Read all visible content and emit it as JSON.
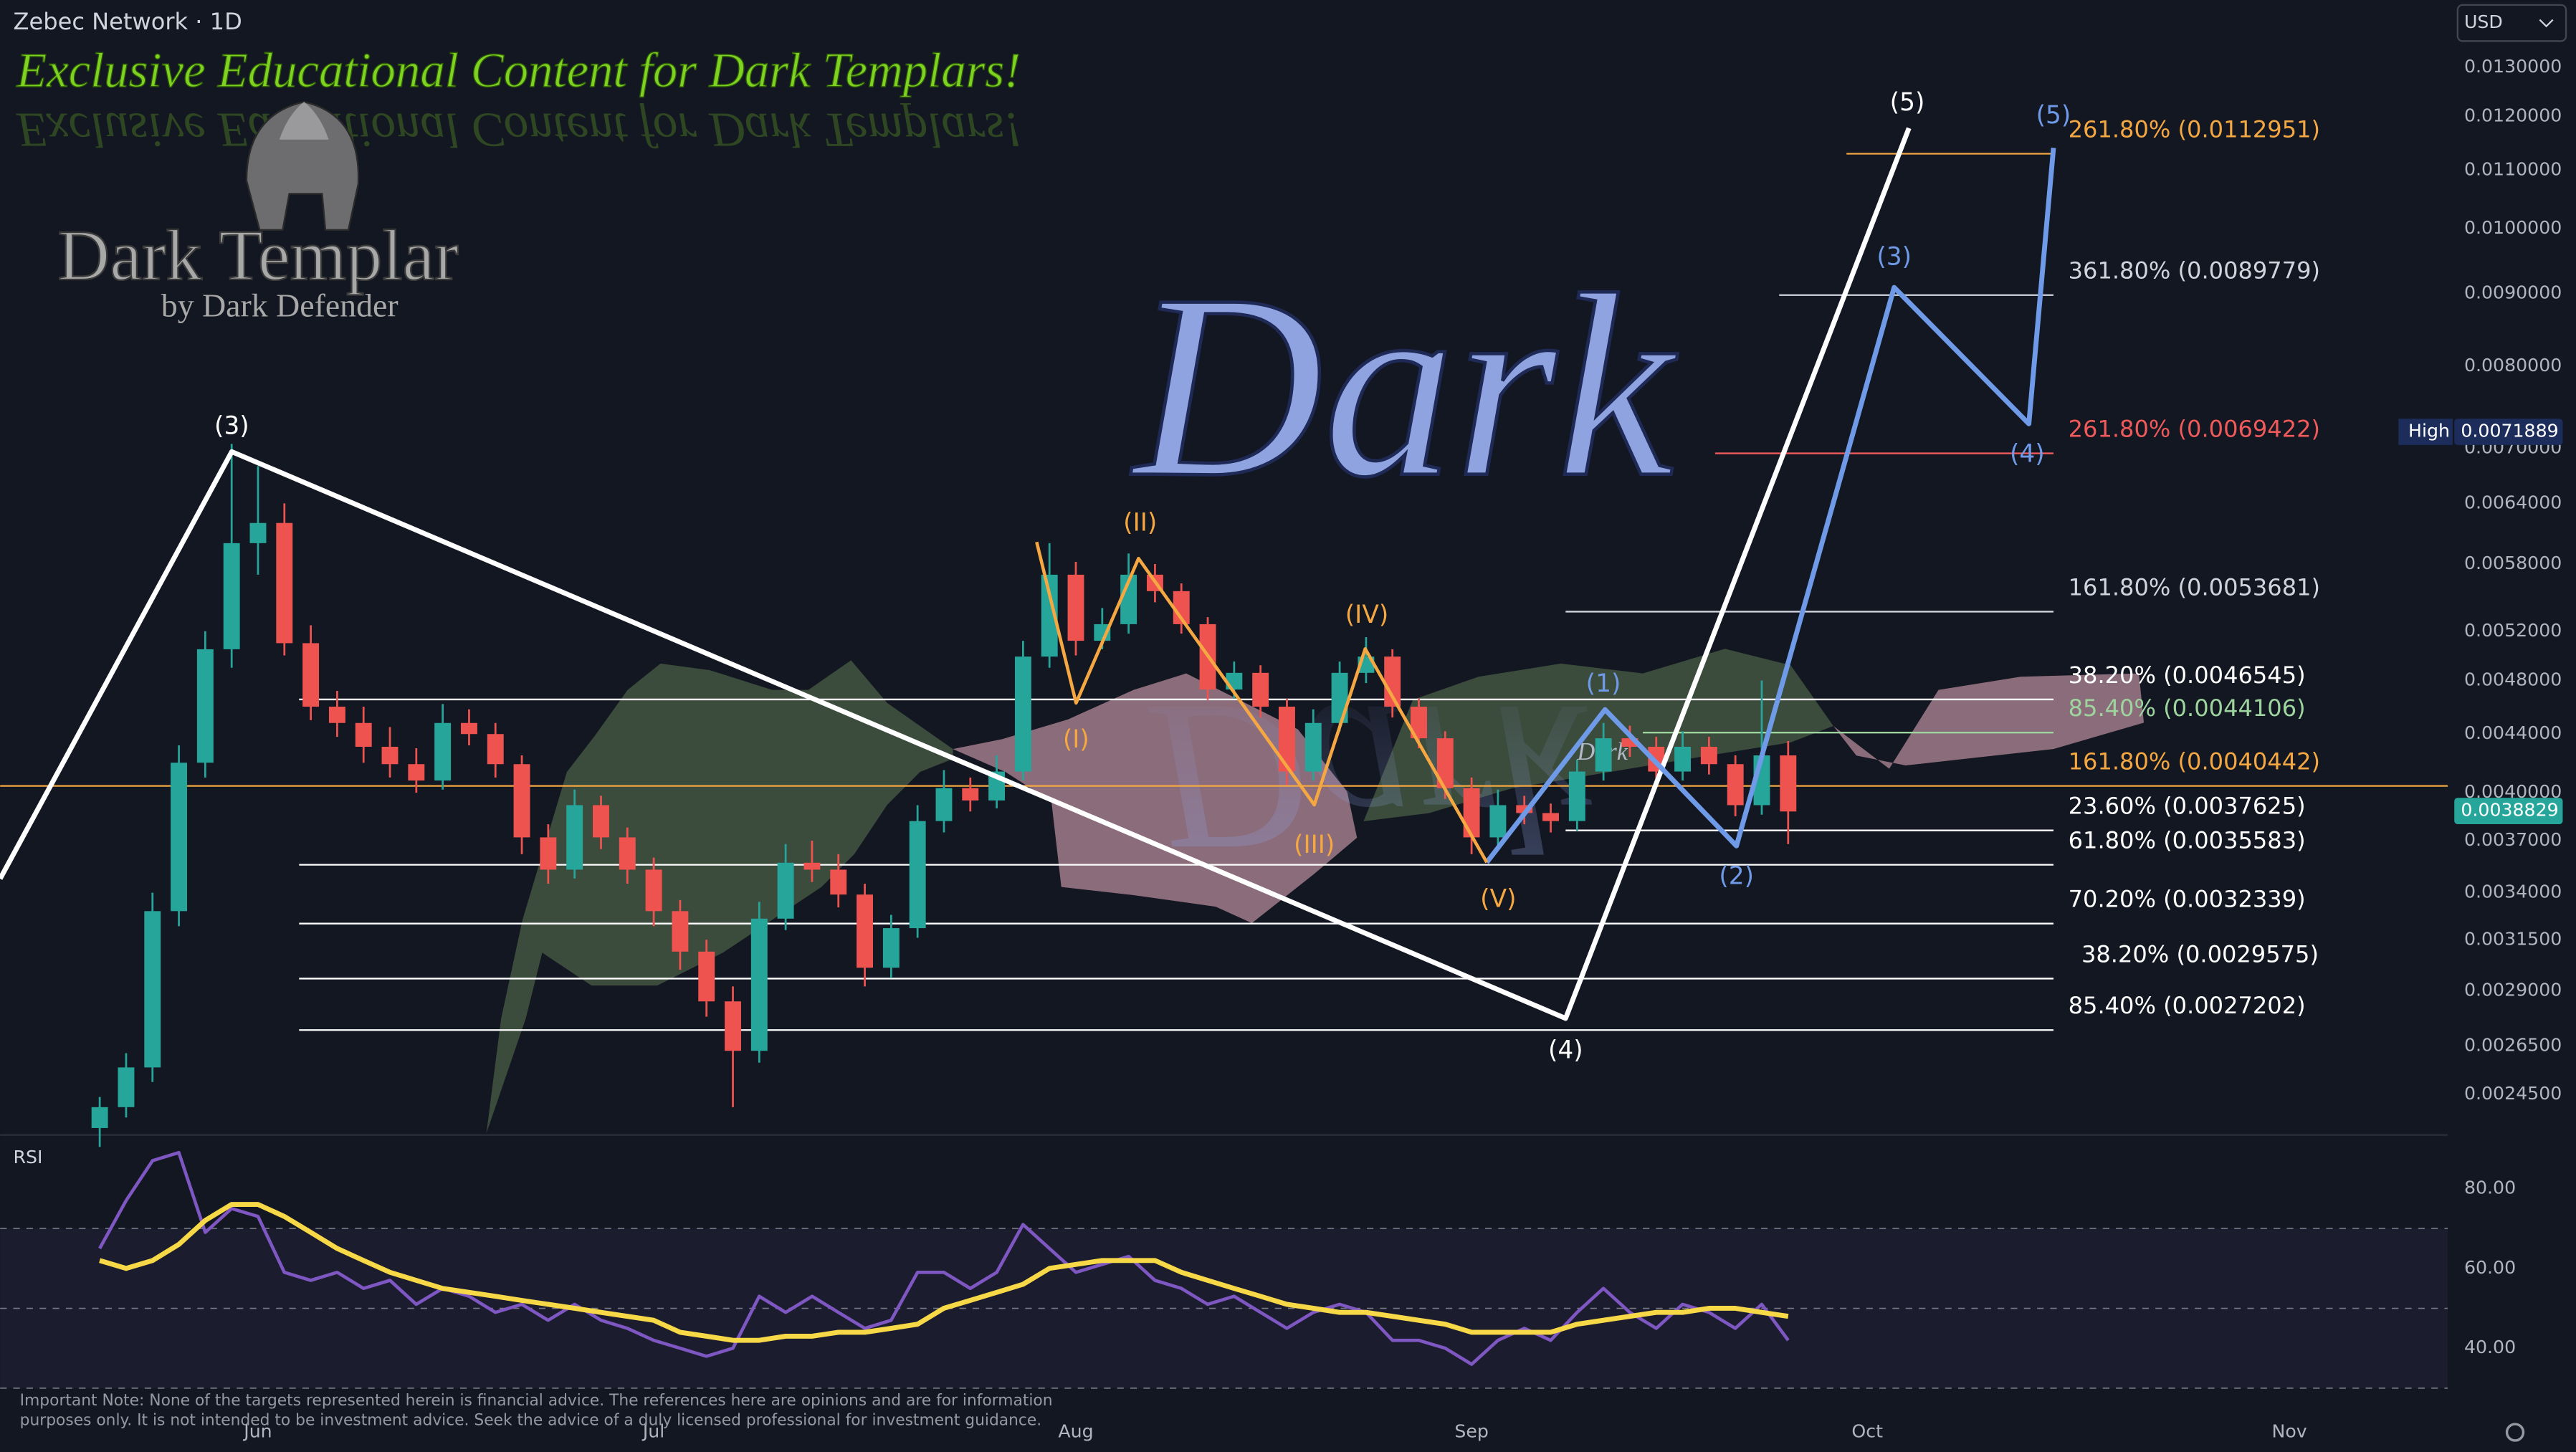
{
  "header": {
    "symbol": "Zebec Network · 1D",
    "currency": "USD",
    "banner": "Exclusive Educational Content for Dark Templars!",
    "logo_title": "Dark Templar",
    "logo_subtitle": "by Dark Defender",
    "watermark": "Dark",
    "watermark_small": "Dark"
  },
  "chart_data": [
    {
      "type": "candlestick",
      "categories": [
        null,
        null,
        null,
        null,
        null,
        null,
        "Jun",
        null,
        null,
        null,
        null,
        null,
        null,
        null,
        null,
        null,
        null,
        null,
        null,
        null,
        null,
        "Jul",
        null,
        null,
        null,
        null,
        null,
        null,
        null,
        null,
        null,
        null,
        null,
        null,
        null,
        null,
        null,
        "Aug",
        null,
        null,
        null,
        null,
        null,
        null,
        null,
        null,
        null,
        null,
        null,
        null,
        null,
        null,
        "Sep",
        null,
        null,
        null,
        null,
        null,
        null,
        null,
        null,
        null,
        null,
        null,
        null,
        null,
        null,
        "Oct",
        null,
        null,
        null,
        null,
        null,
        null,
        null,
        null,
        null,
        null,
        null,
        null,
        null,
        null,
        null,
        "Nov",
        null,
        null,
        null,
        null,
        null
      ],
      "open": [
        0.00232,
        0.0024,
        0.00256,
        0.0033,
        0.0042,
        0.00505,
        0.006,
        0.0062,
        0.0051,
        0.0046,
        0.00448,
        0.00431,
        0.00419,
        0.00408,
        0.00448,
        0.0044,
        0.00419,
        0.00372,
        0.00353,
        0.00392,
        0.00372,
        0.00353,
        0.0033,
        0.00309,
        0.00285,
        0.00263,
        0.00326,
        0.00357,
        0.00353,
        0.00339,
        0.00301,
        0.00321,
        0.00382,
        0.00403,
        0.00395,
        0.00414,
        0.00499,
        0.0057,
        0.00512,
        0.00526,
        0.0057,
        0.00555,
        0.00526,
        0.00473,
        0.00486,
        0.0046,
        0.00414,
        0.00448,
        0.00486,
        0.00499,
        0.0046,
        0.00437,
        0.00403,
        0.00372,
        0.00392,
        0.00387,
        0.00382,
        0.00414,
        0.00437,
        0.00431,
        0.00414,
        0.00431,
        0.00419,
        0.00392,
        0.00425,
        null,
        null,
        null,
        null,
        null,
        null,
        null,
        null,
        null,
        null,
        null,
        null,
        null,
        null,
        null,
        null,
        null,
        null,
        null,
        null,
        null,
        null,
        null,
        null
      ],
      "high": [
        0.00244,
        0.00262,
        0.0034,
        0.00432,
        0.0052,
        0.00705,
        0.0068,
        0.0064,
        0.00525,
        0.00472,
        0.0046,
        0.00445,
        0.0043,
        0.00462,
        0.00458,
        0.00448,
        0.00425,
        0.0038,
        0.00402,
        0.00398,
        0.00378,
        0.0036,
        0.00336,
        0.00315,
        0.00292,
        0.00335,
        0.00368,
        0.0037,
        0.00362,
        0.00345,
        0.00328,
        0.00392,
        0.00415,
        0.0041,
        0.00425,
        0.00512,
        0.006,
        0.00582,
        0.0054,
        0.0059,
        0.0058,
        0.00562,
        0.00532,
        0.00495,
        0.00492,
        0.00466,
        0.00458,
        0.00495,
        0.00515,
        0.00505,
        0.00466,
        0.00442,
        0.0041,
        0.00402,
        0.00398,
        0.00393,
        0.00422,
        0.00448,
        0.00446,
        0.00438,
        0.00442,
        0.00438,
        0.00425,
        0.0048,
        0.00435,
        null,
        null,
        null,
        null,
        null,
        null,
        null,
        null,
        null,
        null,
        null,
        null,
        null,
        null,
        null,
        null,
        null,
        null,
        null,
        null,
        null,
        null,
        null,
        null
      ],
      "low": [
        0.00225,
        0.00236,
        0.0025,
        0.00322,
        0.0041,
        0.0049,
        0.0057,
        0.005,
        0.0045,
        0.00438,
        0.0042,
        0.0041,
        0.004,
        0.00402,
        0.00432,
        0.0041,
        0.00362,
        0.00345,
        0.00348,
        0.00365,
        0.00345,
        0.00322,
        0.003,
        0.00278,
        0.0024,
        0.00258,
        0.0032,
        0.00346,
        0.00332,
        0.00292,
        0.00296,
        0.00316,
        0.00375,
        0.00388,
        0.0039,
        0.00408,
        0.0049,
        0.005,
        0.00505,
        0.00518,
        0.00545,
        0.00518,
        0.00465,
        0.00466,
        0.00452,
        0.00405,
        0.00408,
        0.00442,
        0.00478,
        0.00452,
        0.0043,
        0.00396,
        0.00362,
        0.00366,
        0.0038,
        0.00375,
        0.00376,
        0.00408,
        0.00424,
        0.00405,
        0.00408,
        0.00412,
        0.00385,
        0.00386,
        0.00368,
        null,
        null,
        null,
        null,
        null,
        null,
        null,
        null,
        null,
        null,
        null,
        null,
        null,
        null,
        null,
        null,
        null,
        null,
        null,
        null,
        null,
        null,
        null,
        null
      ],
      "close": [
        0.0024,
        0.00256,
        0.0033,
        0.0042,
        0.00505,
        0.006,
        0.0062,
        0.0051,
        0.0046,
        0.00448,
        0.00431,
        0.00419,
        0.00408,
        0.00448,
        0.0044,
        0.00419,
        0.00372,
        0.00353,
        0.00392,
        0.00372,
        0.00353,
        0.0033,
        0.00309,
        0.00285,
        0.00263,
        0.00326,
        0.00357,
        0.00353,
        0.00339,
        0.00301,
        0.00321,
        0.00382,
        0.00403,
        0.00395,
        0.00414,
        0.00499,
        0.0057,
        0.00512,
        0.00526,
        0.0057,
        0.00555,
        0.00526,
        0.00473,
        0.00486,
        0.0046,
        0.00414,
        0.00448,
        0.00486,
        0.00499,
        0.0046,
        0.00437,
        0.00403,
        0.00372,
        0.00392,
        0.00387,
        0.00382,
        0.00414,
        0.00437,
        0.00431,
        0.00414,
        0.00431,
        0.00419,
        0.00392,
        0.00425,
        0.00388,
        null,
        null,
        null,
        null,
        null,
        null,
        null,
        null,
        null,
        null,
        null,
        null,
        null,
        null,
        null,
        null,
        null,
        null,
        null,
        null,
        null,
        null,
        null,
        null
      ],
      "up_color": "#26a69a",
      "down_color": "#ef5350",
      "log_scale": true,
      "grid": false,
      "ylim": [
        0.0023,
        0.0145
      ],
      "yticks": [
        {
          "value": 0.00245,
          "label": "0.0024500"
        },
        {
          "value": 0.00265,
          "label": "0.0026500"
        },
        {
          "value": 0.0029,
          "label": "0.0029000"
        },
        {
          "value": 0.00315,
          "label": "0.0031500"
        },
        {
          "value": 0.0034,
          "label": "0.0034000"
        },
        {
          "value": 0.0037,
          "label": "0.0037000"
        },
        {
          "value": 0.004,
          "label": "0.0040000"
        },
        {
          "value": 0.0044,
          "label": "0.0044000"
        },
        {
          "value": 0.0048,
          "label": "0.0048000"
        },
        {
          "value": 0.0052,
          "label": "0.0052000"
        },
        {
          "value": 0.0058,
          "label": "0.0058000"
        },
        {
          "value": 0.0064,
          "label": "0.0064000"
        },
        {
          "value": 0.007,
          "label": "0.0070000"
        },
        {
          "value": 0.008,
          "label": "0.0080000"
        },
        {
          "value": 0.009,
          "label": "0.0090000"
        },
        {
          "value": 0.01,
          "label": "0.0100000"
        },
        {
          "value": 0.011,
          "label": "0.0110000"
        },
        {
          "value": 0.012,
          "label": "0.0120000"
        },
        {
          "value": 0.013,
          "label": "0.0130000"
        }
      ],
      "price_tags": [
        {
          "name": "High",
          "value": 0.0071889,
          "color": "#1c2c5b"
        },
        {
          "value": 0.0038829,
          "color": "#26a69a"
        }
      ],
      "levels": [
        {
          "label": "261.80% (0.0112951)",
          "value": 0.0112951,
          "color": "#f5a742"
        },
        {
          "label": "361.80% (0.0089779)",
          "value": 0.0089779,
          "color": "#d1d4dc"
        },
        {
          "label": "261.80% (0.0069422)",
          "value": 0.0069422,
          "color": "#f05a5a"
        },
        {
          "label": "161.80% (0.0053681)",
          "value": 0.0053681,
          "color": "#d1d4dc"
        },
        {
          "label": "38.20% (0.0046545)",
          "value": 0.0046545,
          "color": "#ffffff"
        },
        {
          "label": "85.40% (0.0044106)",
          "value": 0.0044106,
          "color": "#9ed49e"
        },
        {
          "label": "161.80% (0.0040442)",
          "value": 0.0040442,
          "color": "#f5a742"
        },
        {
          "label": "23.60% (0.0037625)",
          "value": 0.0037625,
          "color": "#ffffff"
        },
        {
          "label": "61.80% (0.0035583)",
          "value": 0.0035583,
          "color": "#ffffff"
        },
        {
          "label": "70.20% (0.0032339)",
          "value": 0.0032339,
          "color": "#ffffff"
        },
        {
          "label": "38.20% (0.0029575)",
          "value": 0.0029575,
          "color": "#ffffff"
        },
        {
          "label": "85.40% (0.0027202)",
          "value": 0.0027202,
          "color": "#ffffff"
        }
      ],
      "waves": [
        {
          "color": "#ffffff",
          "labels": [
            "(3)",
            "(4)",
            "(5)"
          ]
        },
        {
          "color": "#6f9ae8",
          "labels": [
            "(1)",
            "(2)",
            "(3)",
            "(4)",
            "(5)"
          ]
        },
        {
          "color": "#f5a742",
          "labels": [
            "(I)",
            "(II)",
            "(III)",
            "(IV)",
            "(V)"
          ]
        }
      ]
    },
    {
      "type": "line",
      "title": "RSI",
      "series": [
        {
          "color": "#7e57c2",
          "values": [
            65,
            77,
            87,
            89,
            69,
            75,
            73,
            59,
            57,
            59,
            55,
            57,
            51,
            55,
            53,
            49,
            51,
            47,
            51,
            47,
            45,
            42,
            40,
            38,
            40,
            53,
            49,
            53,
            49,
            45,
            47,
            59,
            59,
            55,
            59,
            71,
            65,
            59,
            61,
            63,
            57,
            55,
            51,
            53,
            49,
            45,
            49,
            51,
            49,
            42,
            42,
            40,
            36,
            42,
            45,
            42,
            49,
            55,
            49,
            45,
            51,
            49,
            45,
            51,
            42,
            null,
            null,
            null,
            null,
            null,
            null,
            null,
            null,
            null,
            null,
            null,
            null,
            null,
            null,
            null,
            null,
            null,
            null,
            null,
            null,
            null,
            null,
            null,
            null
          ]
        },
        {
          "color": "#f7d948",
          "values": [
            62,
            60,
            62,
            66,
            72,
            76,
            76,
            73,
            69,
            65,
            62,
            59,
            57,
            55,
            54,
            53,
            52,
            51,
            50,
            49,
            48,
            47,
            44,
            43,
            42,
            42,
            43,
            43,
            44,
            44,
            45,
            46,
            50,
            52,
            54,
            56,
            60,
            61,
            62,
            62,
            62,
            59,
            57,
            55,
            53,
            51,
            50,
            49,
            49,
            48,
            47,
            46,
            44,
            44,
            44,
            44,
            46,
            47,
            48,
            49,
            49,
            50,
            50,
            49,
            48,
            null,
            null,
            null,
            null,
            null,
            null,
            null,
            null,
            null,
            null,
            null,
            null,
            null,
            null,
            null,
            null,
            null,
            null,
            null,
            null,
            null,
            null,
            null,
            null
          ]
        }
      ],
      "ylim": [
        28,
        93
      ],
      "yticks": [
        {
          "value": 40,
          "label": "40.00"
        },
        {
          "value": 60,
          "label": "60.00"
        },
        {
          "value": 80,
          "label": "80.00"
        }
      ],
      "band": [
        30,
        70
      ],
      "midline": 50
    }
  ],
  "footer": {
    "note": [
      "Important Note: None of the targets represented herein is financial advice. The references here are opinions and are for information",
      "purposes only. It is not intended to be investment advice. Seek the advice of a duly licensed professional for investment guidance."
    ]
  }
}
